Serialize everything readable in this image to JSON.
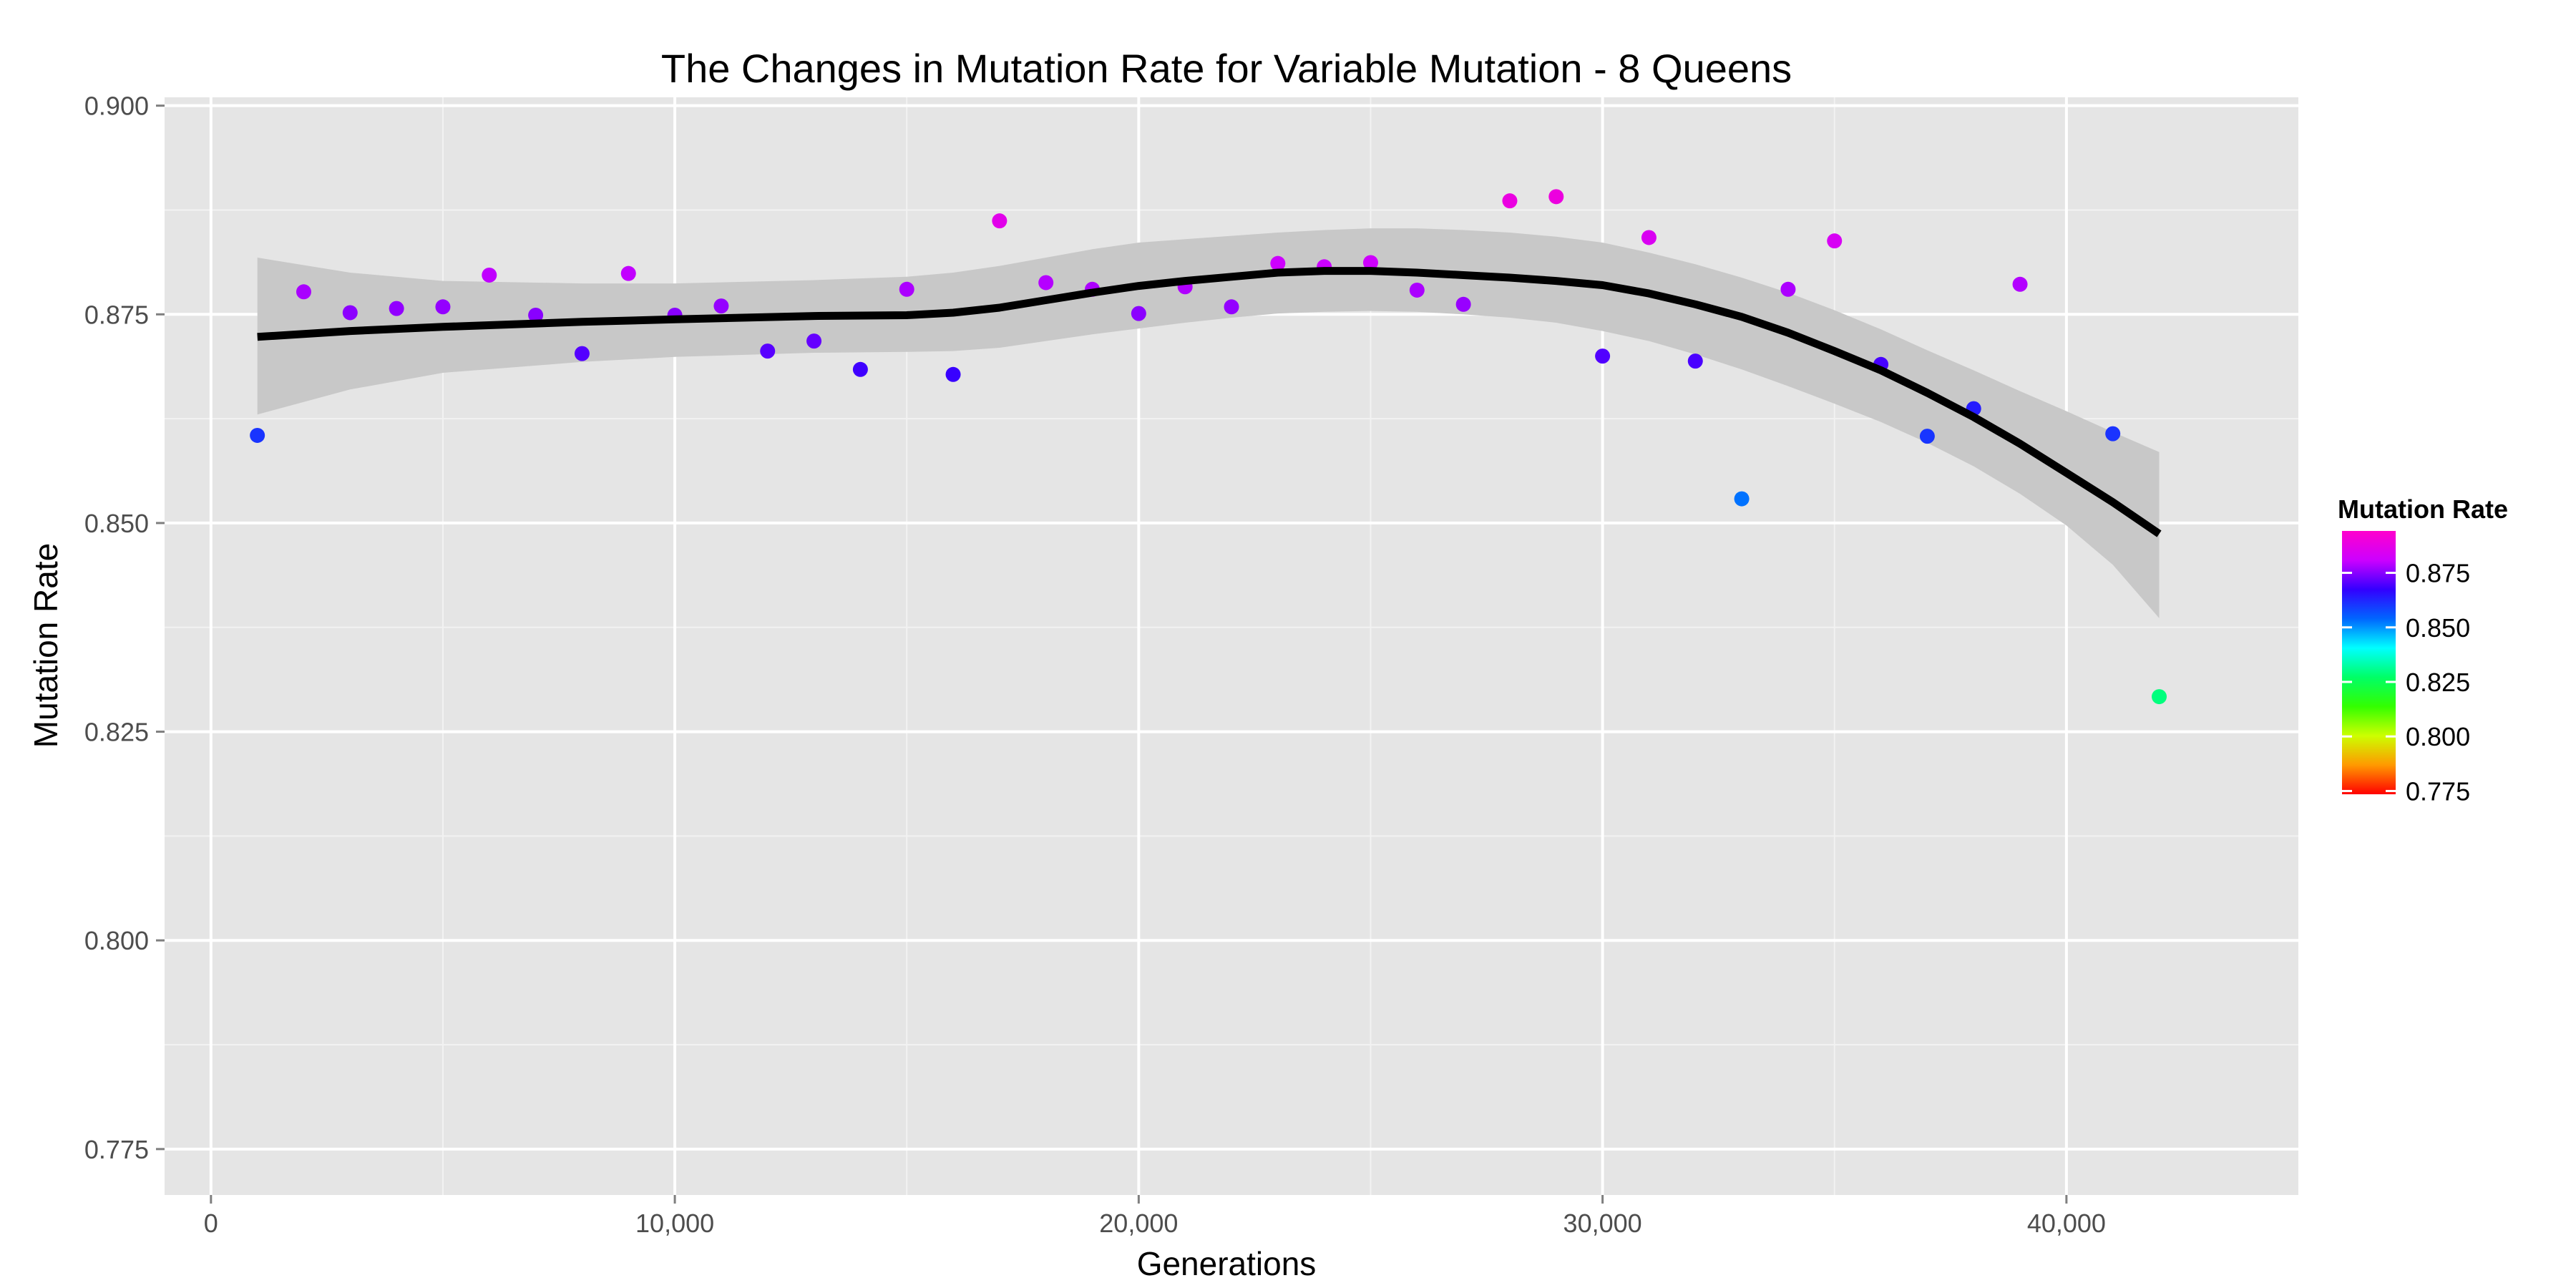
{
  "chart_data": {
    "type": "scatter",
    "title": "The Changes in Mutation Rate for Variable Mutation - 8 Queens",
    "xlabel": "Generations",
    "ylabel": "Mutation Rate",
    "xlim": [
      -1000,
      45000
    ],
    "ylim": [
      0.7695,
      0.901
    ],
    "x_ticks": [
      0,
      10000,
      20000,
      30000,
      40000
    ],
    "x_tick_labels": [
      "0",
      "10,000",
      "20,000",
      "30,000",
      "40,000"
    ],
    "y_ticks": [
      0.775,
      0.8,
      0.825,
      0.85,
      0.875,
      0.9
    ],
    "y_tick_labels": [
      "0.775",
      "0.800",
      "0.825",
      "0.850",
      "0.875",
      "0.900"
    ],
    "grid": true,
    "points": {
      "x": [
        1000,
        2000,
        3000,
        4000,
        5000,
        6000,
        7000,
        8000,
        9000,
        10000,
        11000,
        12000,
        13000,
        14000,
        15000,
        16000,
        17000,
        18000,
        19000,
        20000,
        21000,
        22000,
        23000,
        24000,
        25000,
        26000,
        27000,
        28000,
        29000,
        30000,
        31000,
        32000,
        33000,
        34000,
        35000,
        36000,
        37000,
        38000,
        39000,
        41000,
        42000
      ],
      "y": [
        0.8605,
        0.8777,
        0.8752,
        0.8757,
        0.8759,
        0.8797,
        0.8749,
        0.8703,
        0.8799,
        0.8749,
        0.876,
        0.8706,
        0.8718,
        0.8684,
        0.878,
        0.8678,
        0.8862,
        0.8788,
        0.878,
        0.8751,
        0.8783,
        0.8759,
        0.8811,
        0.8807,
        0.8812,
        0.8779,
        0.8762,
        0.8886,
        0.8891,
        0.87,
        0.8842,
        0.8694,
        0.8529,
        0.878,
        0.8838,
        0.869,
        0.8604,
        0.8637,
        0.8786,
        0.8607,
        0.8292
      ]
    },
    "smooth": {
      "x": [
        1000,
        3000,
        5000,
        8000,
        10000,
        13000,
        15000,
        16000,
        17000,
        18000,
        19000,
        20000,
        21000,
        22000,
        23000,
        24000,
        25000,
        26000,
        27000,
        28000,
        29000,
        30000,
        31000,
        32000,
        33000,
        34000,
        35000,
        36000,
        37000,
        38000,
        39000,
        40000,
        41000,
        42000
      ],
      "y": [
        0.8723,
        0.873,
        0.8735,
        0.8741,
        0.8744,
        0.8748,
        0.8749,
        0.8752,
        0.8758,
        0.8767,
        0.8776,
        0.8784,
        0.879,
        0.8795,
        0.88,
        0.8802,
        0.8802,
        0.88,
        0.8797,
        0.8794,
        0.879,
        0.8785,
        0.8775,
        0.8762,
        0.8747,
        0.8728,
        0.8706,
        0.8683,
        0.8656,
        0.8627,
        0.8595,
        0.856,
        0.8525,
        0.8487
      ],
      "upper": [
        0.8818,
        0.88,
        0.879,
        0.8787,
        0.8787,
        0.8791,
        0.8795,
        0.88,
        0.8808,
        0.8818,
        0.8828,
        0.8836,
        0.884,
        0.8844,
        0.8848,
        0.8851,
        0.8853,
        0.8853,
        0.8851,
        0.8848,
        0.8843,
        0.8836,
        0.8824,
        0.881,
        0.8794,
        0.8776,
        0.8755,
        0.8732,
        0.8707,
        0.8683,
        0.8658,
        0.8634,
        0.8609,
        0.8585
      ],
      "lower": [
        0.863,
        0.866,
        0.868,
        0.8693,
        0.8699,
        0.8704,
        0.8705,
        0.8706,
        0.871,
        0.8718,
        0.8726,
        0.8733,
        0.874,
        0.8746,
        0.8751,
        0.8753,
        0.8754,
        0.8753,
        0.875,
        0.8746,
        0.874,
        0.873,
        0.8718,
        0.8702,
        0.8684,
        0.8664,
        0.8643,
        0.8621,
        0.8596,
        0.8568,
        0.8535,
        0.8497,
        0.845,
        0.8386
      ]
    },
    "legend": {
      "title": "Mutation Rate",
      "placement": "right",
      "tick_values": [
        0.775,
        0.8,
        0.825,
        0.85,
        0.875
      ],
      "tick_labels": [
        "0.775",
        "0.800",
        "0.825",
        "0.850",
        "0.875"
      ],
      "range": [
        0.7735,
        0.8942
      ],
      "colors": [
        "#ff0000",
        "#ff9900",
        "#ccff00",
        "#33ff00",
        "#00ff66",
        "#00ffff",
        "#0066ff",
        "#3300ff",
        "#cc00ff",
        "#ff00cc"
      ]
    },
    "style": {
      "panel_color": "#e5e5e5",
      "grid_color": "#ffffff",
      "band_color": "#c8c8c8",
      "line_color": "#000000"
    }
  }
}
